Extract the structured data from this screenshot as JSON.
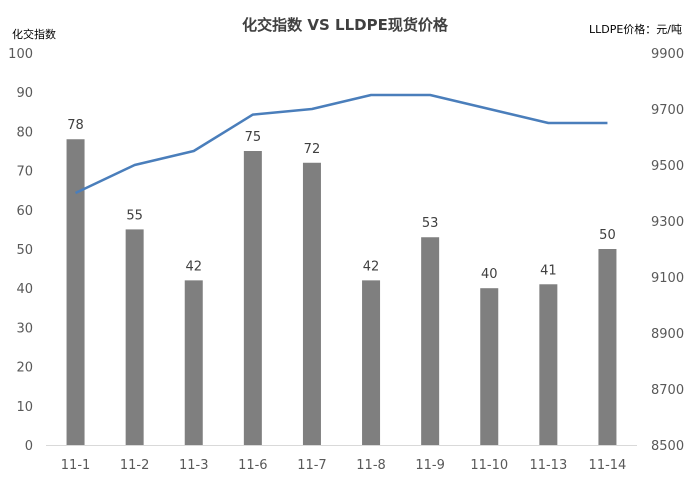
{
  "chart_data": {
    "type": "bar+line",
    "title": "化交指数 VS LLDPE现货价格",
    "ylabel_left": "化交指数",
    "ylabel_right": "LLDPE价格：元/吨",
    "categories": [
      "11-1",
      "11-2",
      "11-3",
      "11-6",
      "11-7",
      "11-8",
      "11-9",
      "11-10",
      "11-13",
      "11-14"
    ],
    "left_axis": {
      "min": 0,
      "max": 100,
      "step": 10
    },
    "right_axis": {
      "min": 8500,
      "max": 9900,
      "step": 200
    },
    "series": [
      {
        "type": "bar",
        "axis": "left",
        "color": "#7f7f7f",
        "values": [
          78,
          55,
          42,
          75,
          72,
          42,
          53,
          40,
          41,
          50
        ]
      },
      {
        "type": "line",
        "axis": "right",
        "color": "#4a7ebb",
        "values": [
          9400,
          9500,
          9550,
          9680,
          9700,
          9750,
          9750,
          9700,
          9650,
          9650
        ]
      }
    ],
    "grid": false,
    "legend": "none"
  }
}
